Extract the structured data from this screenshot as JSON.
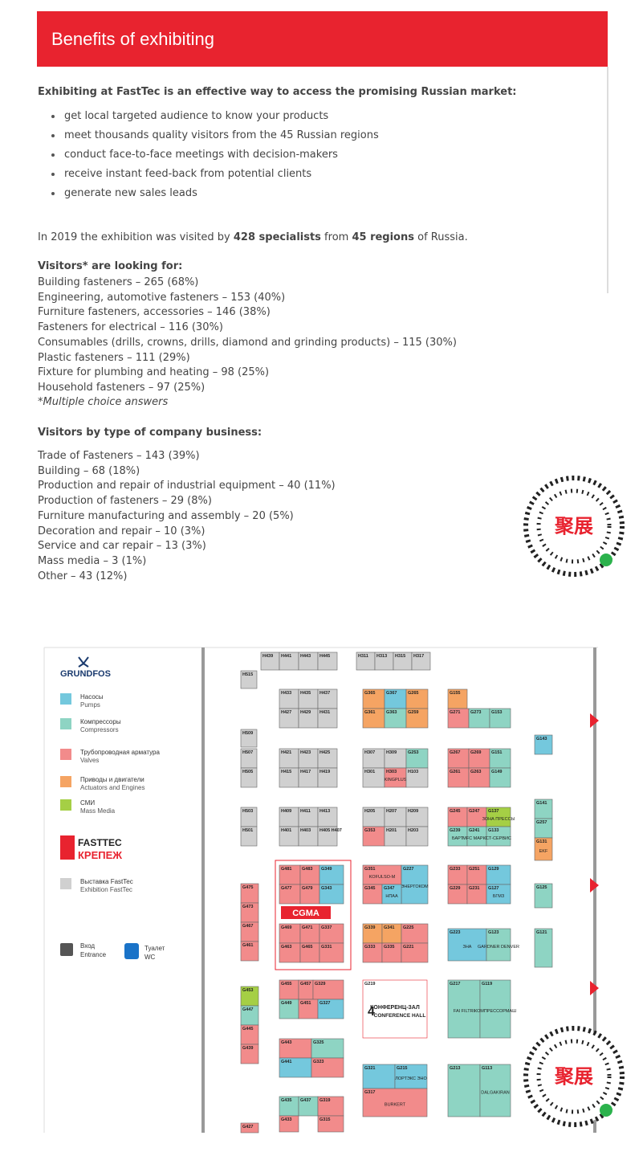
{
  "header": {
    "title": "Benefits of exhibiting"
  },
  "intro": "Exhibiting at FastTec is an effective way to access the promising Russian market:",
  "bullets": [
    "get local targeted audience to know your products",
    "meet thousands quality visitors from the 45 Russian regions",
    "conduct face-to-face meetings with decision-makers",
    "receive instant feed-back from potential clients",
    "generate new sales leads"
  ],
  "stats": [
    {
      "text": "In 2019 the exhibition was visited by ",
      "bold": false
    },
    {
      "text": "428 specialists",
      "bold": true
    },
    {
      "text": " from ",
      "bold": false
    },
    {
      "text": "45 regions",
      "bold": true
    },
    {
      "text": " of Russia.",
      "bold": false
    }
  ],
  "visitors": {
    "heading": "Visitors*  are looking for:",
    "items": [
      "Building fasteners – 265 (68%)",
      "Engineering, automotive fasteners – 153 (40%)",
      "Furniture fasteners, accessories – 146 (38%)",
      "Fasteners for electrical – 116 (30%)",
      "Consumables (drills, crowns, drills, diamond and grinding products) – 115 (30%)",
      "Plastic fasteners – 111 (29%)",
      "Fixture for plumbing and heating – 98 (25%)",
      "Household fasteners – 97 (25%)"
    ],
    "note": "*Multiple choice answers"
  },
  "business": {
    "heading": "Visitors by type of company business:",
    "items": [
      "Trade of Fasteners – 143 (39%)",
      "Building – 68 (18%)",
      "Production and repair of industrial equipment – 40 (11%)",
      "Production of fasteners – 29 (8%)",
      "Furniture manufacturing and assembly – 20 (5%)",
      "Decoration and repair – 10 (3%)",
      "Service and car repair – 13 (3%)",
      "Mass media – 3 (1%)",
      "Other – 43 (12%)"
    ]
  },
  "qr_label": "聚展",
  "floor_plan": {
    "brand": "GRUNDFOS",
    "logo_top": "FASTTEC",
    "logo_bottom": "КРЕПЕЖ",
    "cgma": "CGMA",
    "hall_number": "4",
    "legend": [
      {
        "kind": "pumps",
        "ru": "Насосы",
        "en": "Pumps",
        "color": "#74c8dd"
      },
      {
        "kind": "compressors",
        "ru": "Компрессоры",
        "en": "Compressors",
        "color": "#8ed4c3"
      },
      {
        "kind": "valves",
        "ru": "Трубопроводная арматура",
        "en": "Valves",
        "color": "#f28b8b"
      },
      {
        "kind": "actuators",
        "ru": "Приводы и двигатели",
        "en": "Actuators and Engines",
        "color": "#f5a463"
      },
      {
        "kind": "media",
        "ru": "СМИ",
        "en": "Mass Media",
        "color": "#a5cf45"
      }
    ],
    "fasttec_legend": {
      "kind": "fasttec",
      "ru": "Выставка FastTec",
      "en": "Exhibition FastTec",
      "color": "#d0d0d0"
    },
    "entrance": {
      "ru": "Вход",
      "en": "Entrance"
    },
    "wc": {
      "ru": "Туалет",
      "en": "WC"
    },
    "booths": [
      {
        "id": "H439",
        "kind": "fasttec"
      },
      {
        "id": "H441",
        "kind": "fasttec"
      },
      {
        "id": "H443",
        "kind": "fasttec"
      },
      {
        "id": "H445",
        "kind": "fasttec"
      },
      {
        "id": "H311",
        "kind": "fasttec"
      },
      {
        "id": "H313",
        "kind": "fasttec"
      },
      {
        "id": "H315",
        "kind": "fasttec"
      },
      {
        "id": "H317",
        "kind": "fasttec"
      },
      {
        "id": "H515",
        "kind": "fasttec"
      },
      {
        "id": "H433",
        "kind": "fasttec"
      },
      {
        "id": "H435",
        "kind": "fasttec"
      },
      {
        "id": "H437",
        "kind": "fasttec"
      },
      {
        "id": "H427",
        "kind": "fasttec"
      },
      {
        "id": "H429",
        "kind": "fasttec"
      },
      {
        "id": "H431",
        "kind": "fasttec"
      },
      {
        "id": "G365",
        "kind": "actuators"
      },
      {
        "id": "G367",
        "kind": "pumps"
      },
      {
        "id": "G265",
        "kind": "actuators"
      },
      {
        "id": "G361",
        "kind": "actuators"
      },
      {
        "id": "G363",
        "kind": "compressors"
      },
      {
        "id": "G259",
        "kind": "actuators"
      },
      {
        "id": "G155",
        "kind": "actuators"
      },
      {
        "id": "G271",
        "kind": "valves"
      },
      {
        "id": "G273",
        "kind": "compressors"
      },
      {
        "id": "G153",
        "kind": "compressors"
      },
      {
        "id": "H509",
        "kind": "fasttec"
      },
      {
        "id": "H507",
        "kind": "fasttec"
      },
      {
        "id": "H505",
        "kind": "fasttec"
      },
      {
        "id": "H421",
        "kind": "fasttec"
      },
      {
        "id": "H423",
        "kind": "fasttec"
      },
      {
        "id": "H425",
        "kind": "fasttec"
      },
      {
        "id": "H415",
        "kind": "fasttec"
      },
      {
        "id": "H417",
        "kind": "fasttec"
      },
      {
        "id": "H419",
        "kind": "fasttec"
      },
      {
        "id": "H307",
        "kind": "fasttec"
      },
      {
        "id": "H309",
        "kind": "fasttec"
      },
      {
        "id": "G253",
        "kind": "compressors"
      },
      {
        "id": "H301",
        "kind": "fasttec"
      },
      {
        "id": "H303",
        "kind": "valves",
        "name": "KINGPLUS"
      },
      {
        "id": "H103",
        "kind": "fasttec"
      },
      {
        "id": "G267",
        "kind": "valves"
      },
      {
        "id": "G269",
        "kind": "valves"
      },
      {
        "id": "G151",
        "kind": "compressors"
      },
      {
        "id": "G261",
        "kind": "valves"
      },
      {
        "id": "G263",
        "kind": "valves"
      },
      {
        "id": "G149",
        "kind": "compressors"
      },
      {
        "id": "G143",
        "kind": "pumps"
      },
      {
        "id": "H503",
        "kind": "fasttec"
      },
      {
        "id": "H501",
        "kind": "fasttec"
      },
      {
        "id": "H409",
        "kind": "fasttec"
      },
      {
        "id": "H411",
        "kind": "fasttec"
      },
      {
        "id": "H413",
        "kind": "fasttec"
      },
      {
        "id": "H401",
        "kind": "fasttec"
      },
      {
        "id": "H403",
        "kind": "fasttec"
      },
      {
        "id": "H405 H407",
        "kind": "fasttec"
      },
      {
        "id": "H205",
        "kind": "fasttec"
      },
      {
        "id": "H207",
        "kind": "fasttec"
      },
      {
        "id": "H209",
        "kind": "fasttec"
      },
      {
        "id": "G353",
        "kind": "valves"
      },
      {
        "id": "H201",
        "kind": "fasttec"
      },
      {
        "id": "H203",
        "kind": "fasttec"
      },
      {
        "id": "G245",
        "kind": "valves"
      },
      {
        "id": "G247",
        "kind": "valves"
      },
      {
        "id": "G137",
        "kind": "media",
        "name": "ЗОНА ПРЕССЫ"
      },
      {
        "id": "G239",
        "kind": "compressors",
        "name": "БАРТ"
      },
      {
        "id": "G241",
        "kind": "compressors",
        "name": "MFC МАРКЕТ"
      },
      {
        "id": "G133",
        "kind": "compressors",
        "name": "СТ-СЕРВИС"
      },
      {
        "id": "G141",
        "kind": "compressors"
      },
      {
        "id": "G257",
        "kind": "compressors"
      },
      {
        "id": "G131",
        "kind": "actuators",
        "name": "EKF"
      },
      {
        "id": "G481",
        "kind": "valves"
      },
      {
        "id": "G483",
        "kind": "valves"
      },
      {
        "id": "G349",
        "kind": "pumps"
      },
      {
        "id": "G477",
        "kind": "valves"
      },
      {
        "id": "G479",
        "kind": "valves"
      },
      {
        "id": "G343",
        "kind": "pumps"
      },
      {
        "id": "G469",
        "kind": "valves"
      },
      {
        "id": "G471",
        "kind": "valves"
      },
      {
        "id": "G337",
        "kind": "valves"
      },
      {
        "id": "G463",
        "kind": "valves"
      },
      {
        "id": "G465",
        "kind": "valves"
      },
      {
        "id": "G331",
        "kind": "valves"
      },
      {
        "id": "G351",
        "kind": "valves",
        "name": "KOFULSO-M"
      },
      {
        "id": "G227",
        "kind": "pumps",
        "name": "ЭНЕРГОКОМ"
      },
      {
        "id": "G345",
        "kind": "valves"
      },
      {
        "id": "G347",
        "kind": "pumps",
        "name": "НПАА"
      },
      {
        "id": "G233",
        "kind": "valves"
      },
      {
        "id": "G251",
        "kind": "valves"
      },
      {
        "id": "G129",
        "kind": "pumps"
      },
      {
        "id": "G229",
        "kind": "valves"
      },
      {
        "id": "G231",
        "kind": "valves"
      },
      {
        "id": "G127",
        "kind": "pumps",
        "name": "БГМЗ"
      },
      {
        "id": "G125",
        "kind": "compressors"
      },
      {
        "id": "G339",
        "kind": "actuators"
      },
      {
        "id": "G341",
        "kind": "actuators"
      },
      {
        "id": "G225",
        "kind": "valves"
      },
      {
        "id": "G333",
        "kind": "valves"
      },
      {
        "id": "G335",
        "kind": "valves"
      },
      {
        "id": "G221",
        "kind": "valves"
      },
      {
        "id": "G223",
        "kind": "pumps",
        "name": "ЗНА"
      },
      {
        "id": "G123",
        "kind": "compressors",
        "name": "GARDNER DENVER"
      },
      {
        "id": "G121",
        "kind": "compressors"
      },
      {
        "id": "G475",
        "kind": "valves"
      },
      {
        "id": "G473",
        "kind": "valves"
      },
      {
        "id": "G467",
        "kind": "valves"
      },
      {
        "id": "G461",
        "kind": "valves"
      },
      {
        "id": "G219",
        "kind": "hall",
        "name": "КОНФЕРЕНЦ-ЗАЛ",
        "name_en": "CONFERENCE HALL"
      },
      {
        "id": "G217",
        "kind": "compressors",
        "name": "FAI FILTRI"
      },
      {
        "id": "G119",
        "kind": "compressors",
        "name": "КОМПРЕССОРМАШ"
      },
      {
        "id": "G455",
        "kind": "valves"
      },
      {
        "id": "G457",
        "kind": "valves"
      },
      {
        "id": "G329",
        "kind": "valves"
      },
      {
        "id": "G449",
        "kind": "compressors"
      },
      {
        "id": "G451",
        "kind": "valves"
      },
      {
        "id": "G327",
        "kind": "pumps"
      },
      {
        "id": "G453",
        "kind": "media"
      },
      {
        "id": "G447",
        "kind": "compressors"
      },
      {
        "id": "G445",
        "kind": "valves"
      },
      {
        "id": "G439",
        "kind": "valves"
      },
      {
        "id": "G443",
        "kind": "valves"
      },
      {
        "id": "G325",
        "kind": "compressors"
      },
      {
        "id": "G441",
        "kind": "pumps"
      },
      {
        "id": "G323",
        "kind": "valves"
      },
      {
        "id": "G321",
        "kind": "pumps"
      },
      {
        "id": "G215",
        "kind": "pumps",
        "name": "ЛОРТЭКС ЭНО"
      },
      {
        "id": "G317",
        "kind": "valves",
        "name": "BURKERT"
      },
      {
        "id": "G213",
        "kind": "compressors"
      },
      {
        "id": "G113",
        "kind": "compressors",
        "name": "DALGAKIRAN"
      },
      {
        "id": "G435",
        "kind": "compressors"
      },
      {
        "id": "G437",
        "kind": "compressors"
      },
      {
        "id": "G319",
        "kind": "valves"
      },
      {
        "id": "G433",
        "kind": "valves"
      },
      {
        "id": "G315",
        "kind": "valves"
      },
      {
        "id": "G427",
        "kind": "valves"
      }
    ]
  }
}
